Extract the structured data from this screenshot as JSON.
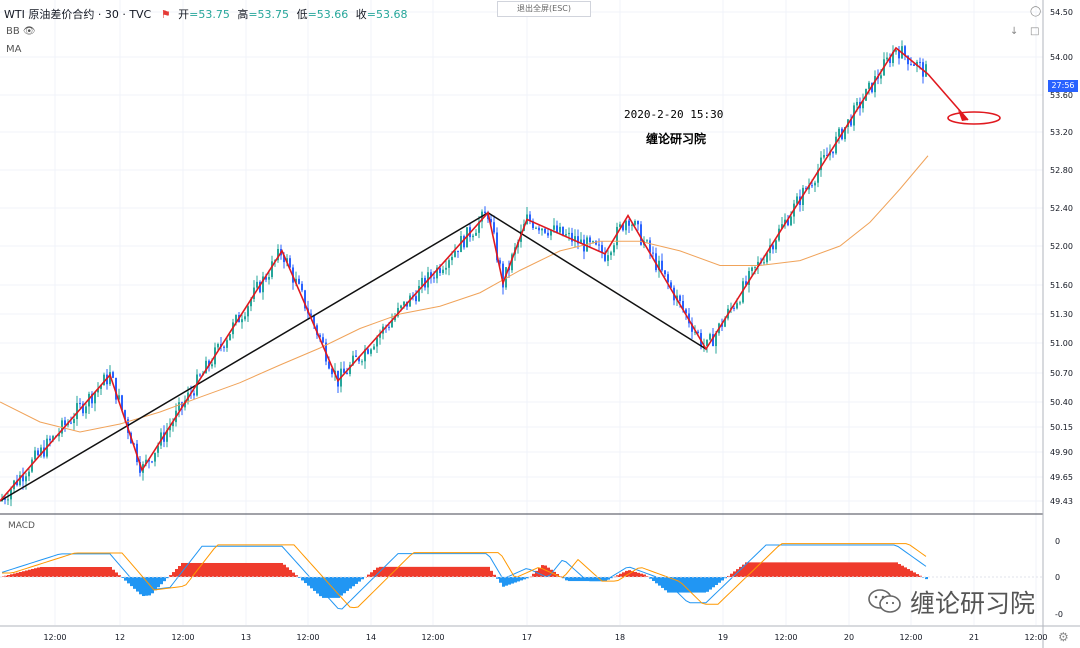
{
  "header": {
    "symbol": "WTI 原油差价合约 · 30 · TVC",
    "open_label": "开",
    "open_value": "=53.75",
    "high_label": "高",
    "high_value": "=53.75",
    "low_label": "低",
    "low_value": "=53.66",
    "close_label": "收",
    "close_value": "=53.68",
    "indicator_bb": "BB",
    "indicator_ma": "MA",
    "fullscreen_hint": "退出全屏(ESC)"
  },
  "annotations": {
    "datetime": "2020-2-20 15:30",
    "author": "缠论研习院",
    "watermark": "缠论研习院"
  },
  "macd_label": "MACD",
  "price_tag": "27:56",
  "colors": {
    "up": "#26a69a",
    "down": "#2962ff",
    "red_line": "#e0191f",
    "ma": "#f0a35a",
    "macd_hist_pos": "#ef3b2c",
    "macd_hist_neg": "#2196f3"
  },
  "chart_data": {
    "type": "candlestick",
    "price_axis": {
      "ticks": [
        "54.50",
        "54.00",
        "53.60",
        "53.20",
        "52.80",
        "52.40",
        "52.00",
        "51.60",
        "51.30",
        "51.00",
        "50.70",
        "50.40",
        "50.15",
        "49.90",
        "49.65",
        "49.43"
      ],
      "range": [
        49.35,
        54.55
      ]
    },
    "macd_axis": {
      "ticks": [
        "0",
        "0",
        "-0"
      ]
    },
    "time_axis": {
      "ticks": [
        "12:00",
        "12",
        "12:00",
        "13",
        "12:00",
        "14",
        "12:00",
        "17",
        "18",
        "19",
        "12:00",
        "20",
        "12:00",
        "21",
        "12:00"
      ]
    },
    "zigzag_red": [
      [
        0,
        49.43
      ],
      [
        110,
        50.68
      ],
      [
        142,
        49.72
      ],
      [
        282,
        51.95
      ],
      [
        338,
        50.62
      ],
      [
        488,
        52.35
      ],
      [
        503,
        51.62
      ],
      [
        527,
        52.28
      ],
      [
        605,
        51.92
      ],
      [
        628,
        52.32
      ],
      [
        706,
        50.94
      ],
      [
        896,
        54.1
      ],
      [
        928,
        53.82
      ]
    ],
    "zigzag_black": [
      [
        0,
        49.43
      ],
      [
        488,
        52.35
      ],
      [
        706,
        50.94
      ]
    ],
    "ma_line": [
      [
        0,
        50.4
      ],
      [
        40,
        50.2
      ],
      [
        80,
        50.1
      ],
      [
        120,
        50.18
      ],
      [
        160,
        50.3
      ],
      [
        200,
        50.45
      ],
      [
        240,
        50.6
      ],
      [
        280,
        50.78
      ],
      [
        320,
        50.95
      ],
      [
        360,
        51.15
      ],
      [
        400,
        51.3
      ],
      [
        440,
        51.38
      ],
      [
        480,
        51.52
      ],
      [
        520,
        51.75
      ],
      [
        560,
        51.95
      ],
      [
        600,
        52.05
      ],
      [
        640,
        52.05
      ],
      [
        680,
        51.95
      ],
      [
        720,
        51.8
      ],
      [
        760,
        51.8
      ],
      [
        800,
        51.85
      ],
      [
        840,
        52.0
      ],
      [
        870,
        52.25
      ],
      [
        900,
        52.6
      ],
      [
        928,
        52.95
      ]
    ]
  }
}
